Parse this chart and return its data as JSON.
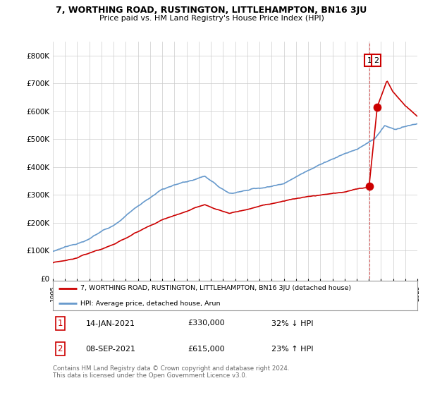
{
  "title": "7, WORTHING ROAD, RUSTINGTON, LITTLEHAMPTON, BN16 3JU",
  "subtitle": "Price paid vs. HM Land Registry's House Price Index (HPI)",
  "legend_label_red": "7, WORTHING ROAD, RUSTINGTON, LITTLEHAMPTON, BN16 3JU (detached house)",
  "legend_label_blue": "HPI: Average price, detached house, Arun",
  "annotation1_date": "14-JAN-2021",
  "annotation1_price": "£330,000",
  "annotation1_pct": "32% ↓ HPI",
  "annotation2_date": "08-SEP-2021",
  "annotation2_price": "£615,000",
  "annotation2_pct": "23% ↑ HPI",
  "footer": "Contains HM Land Registry data © Crown copyright and database right 2024.\nThis data is licensed under the Open Government Licence v3.0.",
  "red_color": "#cc0000",
  "blue_color": "#6699cc",
  "background_color": "#ffffff",
  "grid_color": "#cccccc",
  "ylim": [
    0,
    850000
  ],
  "year_start": 1995,
  "year_end": 2025,
  "sale1_year": 2021.04,
  "sale1_price": 330000,
  "sale2_year": 2021.68,
  "sale2_price": 615000
}
